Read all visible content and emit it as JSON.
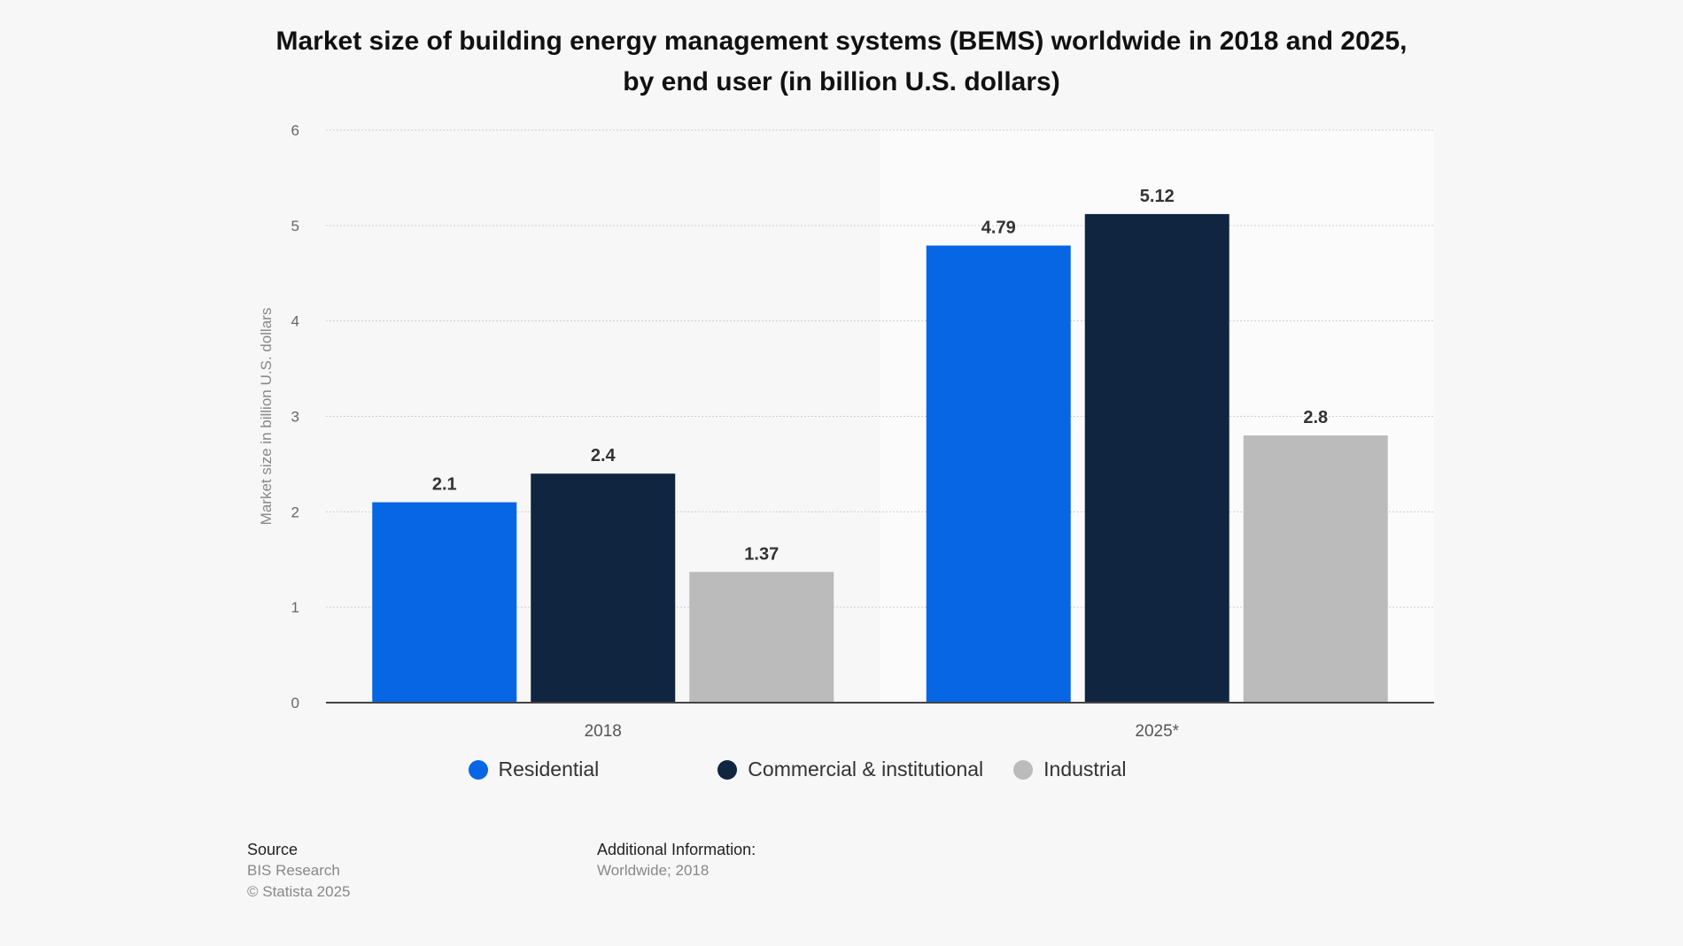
{
  "chart_data": {
    "type": "bar",
    "title": "Market size of building energy management systems (BEMS) worldwide in 2018 and 2025, by end user (in billion U.S. dollars)",
    "categories": [
      "2018",
      "2025*"
    ],
    "series": [
      {
        "name": "Residential",
        "values": [
          2.1,
          4.79
        ],
        "labels": [
          "2.1",
          "4.79"
        ],
        "color": "#0766e4"
      },
      {
        "name": "Commercial & institutional",
        "values": [
          2.4,
          5.12
        ],
        "labels": [
          "2.4",
          "5.12"
        ],
        "color": "#10253f"
      },
      {
        "name": "Industrial",
        "values": [
          1.37,
          2.8
        ],
        "labels": [
          "1.37",
          "2.8"
        ],
        "color": "#bbbbbb"
      }
    ],
    "ylabel": "Market size in billion U.S. dollars",
    "xlabel": "",
    "ylim": [
      0,
      6
    ],
    "yticks": [
      "0",
      "1",
      "2",
      "3",
      "4",
      "5",
      "6"
    ],
    "grid": true,
    "legend": "bottom"
  },
  "footer": {
    "source_heading": "Source",
    "source": "BIS Research",
    "copyright": "© Statista 2025",
    "additional_heading": "Additional Information:",
    "additional": "Worldwide; 2018"
  }
}
